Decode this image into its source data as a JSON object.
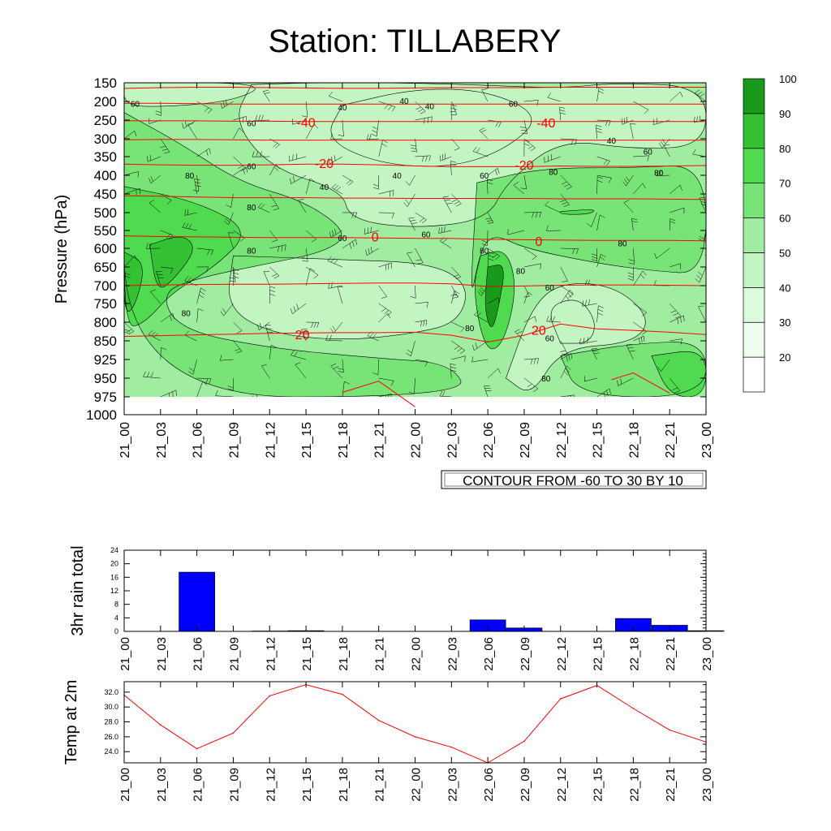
{
  "title": "Station: TILLABERY",
  "chart_data": [
    {
      "type": "heatmap",
      "ylabel": "Pressure (hPa)",
      "x_labels": [
        "21_00",
        "21_03",
        "21_06",
        "21_09",
        "21_12",
        "21_15",
        "21_18",
        "21_21",
        "22_00",
        "22_03",
        "22_06",
        "22_09",
        "22_12",
        "22_15",
        "22_18",
        "22_21",
        "23_00"
      ],
      "y_levels": [
        150,
        200,
        250,
        300,
        350,
        400,
        450,
        500,
        550,
        600,
        650,
        700,
        750,
        800,
        850,
        925,
        950,
        975,
        1000
      ],
      "y_labels": [
        "150",
        "200",
        "250",
        "300",
        "350",
        "400",
        "450",
        "500",
        "550",
        "600",
        "650",
        "700",
        "750",
        "800",
        "850",
        "925",
        "950",
        "975",
        "1000"
      ],
      "colorbar_levels": [
        "20",
        "30",
        "40",
        "50",
        "60",
        "70",
        "80",
        "90",
        "100"
      ],
      "colorbar_colors": [
        "#ffffff",
        "#f0fdf0",
        "#dcfadc",
        "#c3f5c3",
        "#a0eca0",
        "#78e478",
        "#50da50",
        "#34c134",
        "#1a9a1a"
      ],
      "humidity_labels": [
        {
          "text": "60",
          "x": 0.3,
          "p": 205
        },
        {
          "text": "40",
          "x": 6.0,
          "p": 215
        },
        {
          "text": "40",
          "x": 7.7,
          "p": 198
        },
        {
          "text": "40",
          "x": 8.4,
          "p": 212
        },
        {
          "text": "60",
          "x": 10.7,
          "p": 205
        },
        {
          "text": "60",
          "x": 3.5,
          "p": 258
        },
        {
          "text": "40",
          "x": 13.4,
          "p": 305
        },
        {
          "text": "60",
          "x": 14.4,
          "p": 335
        },
        {
          "text": "80",
          "x": 1.8,
          "p": 400
        },
        {
          "text": "60",
          "x": 3.5,
          "p": 375
        },
        {
          "text": "40",
          "x": 7.5,
          "p": 400
        },
        {
          "text": "60",
          "x": 9.9,
          "p": 400
        },
        {
          "text": "80",
          "x": 11.8,
          "p": 390
        },
        {
          "text": "80",
          "x": 14.7,
          "p": 392
        },
        {
          "text": "40",
          "x": 5.5,
          "p": 430
        },
        {
          "text": "80",
          "x": 3.5,
          "p": 485
        },
        {
          "text": "60",
          "x": 6.0,
          "p": 570
        },
        {
          "text": "60",
          "x": 8.3,
          "p": 560
        },
        {
          "text": "80",
          "x": 3.5,
          "p": 605
        },
        {
          "text": "80",
          "x": 9.9,
          "p": 605
        },
        {
          "text": "80",
          "x": 13.7,
          "p": 585
        },
        {
          "text": "80",
          "x": 10.9,
          "p": 660
        },
        {
          "text": "60",
          "x": 11.7,
          "p": 705
        },
        {
          "text": "80",
          "x": 1.7,
          "p": 775
        },
        {
          "text": "80",
          "x": 9.5,
          "p": 815
        },
        {
          "text": "60",
          "x": 11.7,
          "p": 842
        },
        {
          "text": "80",
          "x": 11.6,
          "p": 950
        }
      ],
      "temp_labels": [
        {
          "text": "-40",
          "x": 5.0,
          "p": 255
        },
        {
          "text": "-40",
          "x": 11.6,
          "p": 257
        },
        {
          "text": "-20",
          "x": 5.5,
          "p": 367
        },
        {
          "text": "-20",
          "x": 11.0,
          "p": 372
        },
        {
          "text": "0",
          "x": 6.9,
          "p": 567
        },
        {
          "text": "0",
          "x": 11.4,
          "p": 580
        },
        {
          "text": "20",
          "x": 4.9,
          "p": 833
        },
        {
          "text": "20",
          "x": 11.4,
          "p": 821
        }
      ],
      "legend_box": "CONTOUR FROM -60 TO 30 BY 10"
    },
    {
      "type": "bar",
      "ylabel": "3hr rain total",
      "categories": [
        "21_00",
        "21_03",
        "21_06",
        "21_09",
        "21_12",
        "21_15",
        "21_18",
        "21_21",
        "22_00",
        "22_03",
        "22_06",
        "22_09",
        "22_12",
        "22_15",
        "22_18",
        "22_21",
        "23_00"
      ],
      "values": [
        0,
        0,
        17.5,
        0,
        0.1,
        0.2,
        0,
        0,
        0,
        0,
        3.4,
        1.0,
        0,
        0,
        3.8,
        1.8,
        0.2
      ],
      "ylim": [
        0,
        24
      ],
      "yticks": [
        "0",
        "4",
        "8",
        "12",
        "16",
        "20",
        "24"
      ],
      "bar_color": "#0000ff"
    },
    {
      "type": "line",
      "ylabel": "Temp at 2m",
      "categories": [
        "21_00",
        "21_03",
        "21_06",
        "21_09",
        "21_12",
        "21_15",
        "21_18",
        "21_21",
        "22_00",
        "22_03",
        "22_06",
        "22_09",
        "22_12",
        "22_15",
        "22_18",
        "22_21",
        "23_00"
      ],
      "values": [
        31.6,
        27.6,
        24.4,
        26.5,
        31.5,
        33.0,
        31.7,
        28.2,
        26.0,
        24.6,
        22.5,
        25.4,
        31.1,
        32.9,
        29.8,
        26.9,
        25.3
      ],
      "ylim": [
        22.5,
        33.4
      ],
      "yticks": [
        "24.0",
        "26.0",
        "28.0",
        "30.0",
        "32.0"
      ],
      "line_color": "#ff0000"
    }
  ]
}
